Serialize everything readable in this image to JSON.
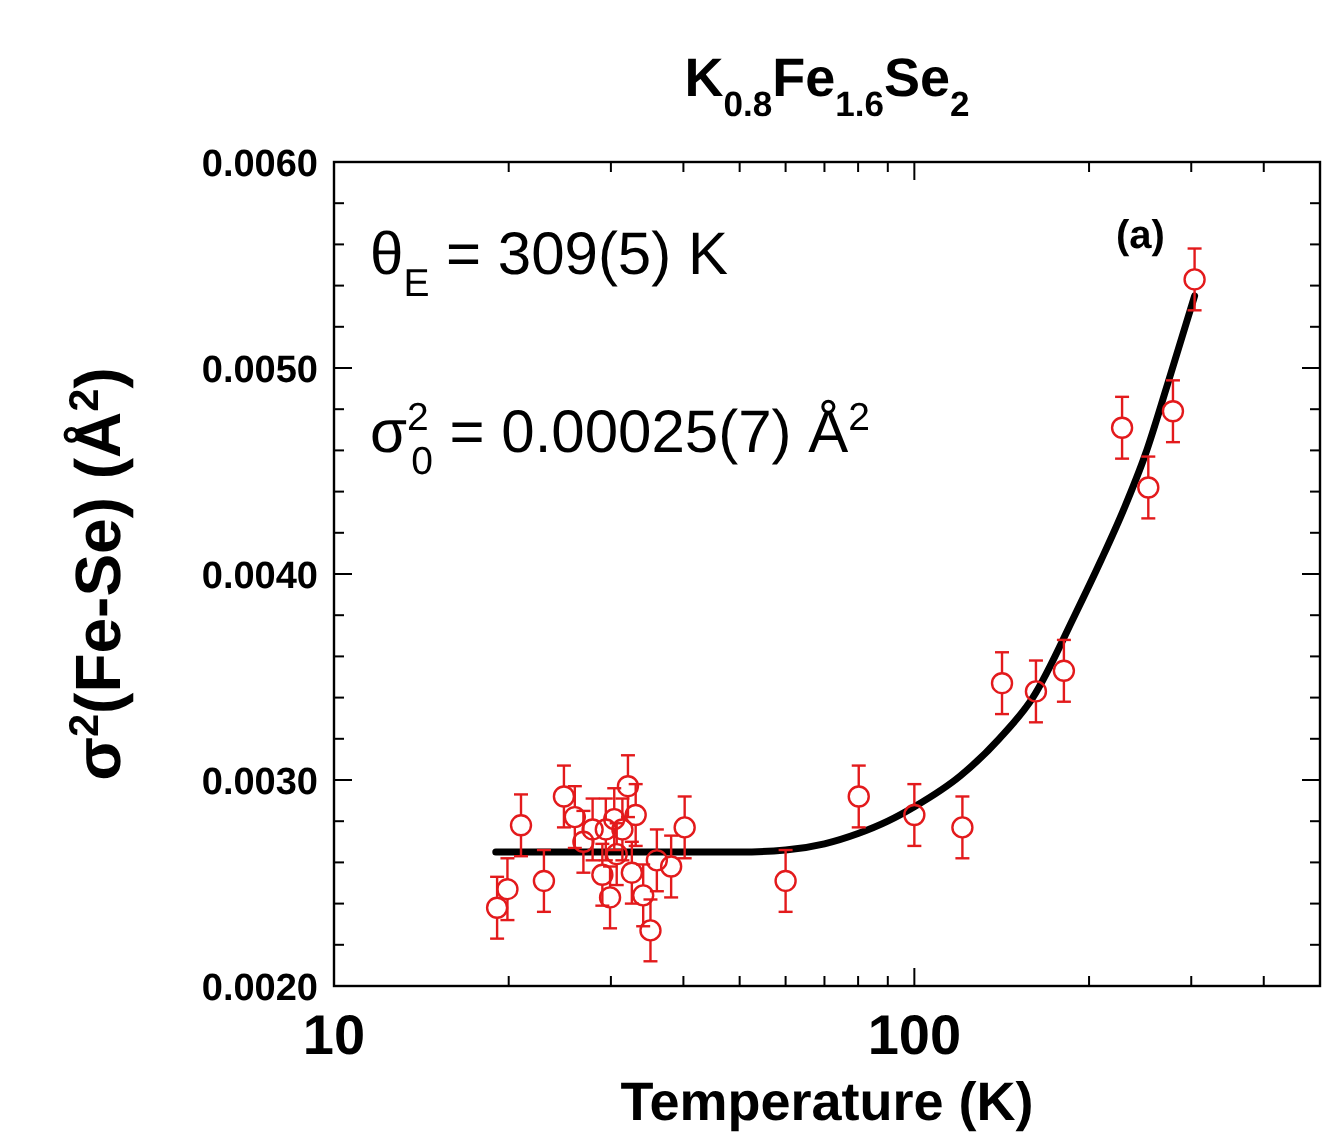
{
  "chart_data": {
    "type": "scatter",
    "title": "K$_{0.8}$Fe$_{1.6}$Se$_{2}$",
    "xlabel": "Temperature (K)",
    "ylabel": "σ$^{2}$(Fe-Se) (Å$^{2}$)",
    "annotations": [
      "θ$_{E}$ = 309(5) K",
      "σ$^{2}$$_{0}$ = 0.00025(7) Å$^{2}$",
      "(a)"
    ],
    "log": "x",
    "grid": false,
    "marker": "circle",
    "xlim": [
      10,
      500
    ],
    "xticks": [
      10,
      {
        "value": 20,
        "label": null
      },
      {
        "value": 30,
        "label": null
      },
      {
        "value": 40,
        "label": null
      },
      {
        "value": 50,
        "label": null
      },
      {
        "value": 60,
        "label": null
      },
      {
        "value": 70,
        "label": null
      },
      {
        "value": 80,
        "label": null
      },
      {
        "value": 90,
        "label": null
      },
      100,
      {
        "value": 200,
        "label": null
      },
      {
        "value": 300,
        "label": null
      },
      {
        "value": 400,
        "label": null
      }
    ],
    "ylim": [
      0.002,
      0.006
    ],
    "yticks": [
      {
        "value": 0.002,
        "label": "0.0020"
      },
      {
        "value": 0.0022,
        "label": null
      },
      {
        "value": 0.0024,
        "label": null
      },
      {
        "value": 0.0026,
        "label": null
      },
      {
        "value": 0.0028,
        "label": null
      },
      {
        "value": 0.003,
        "label": "0.0030"
      },
      {
        "value": 0.0032,
        "label": null
      },
      {
        "value": 0.0034,
        "label": null
      },
      {
        "value": 0.0036,
        "label": null
      },
      {
        "value": 0.0038,
        "label": null
      },
      {
        "value": 0.004,
        "label": "0.0040"
      },
      {
        "value": 0.0042,
        "label": null
      },
      {
        "value": 0.0044,
        "label": null
      },
      {
        "value": 0.0046,
        "label": null
      },
      {
        "value": 0.0048,
        "label": null
      },
      {
        "value": 0.005,
        "label": "0.0050"
      },
      {
        "value": 0.0052,
        "label": null
      },
      {
        "value": 0.0054,
        "label": null
      },
      {
        "value": 0.0056,
        "label": null
      },
      {
        "value": 0.0058,
        "label": null
      },
      {
        "value": 0.006,
        "label": "0.0060"
      }
    ],
    "series": [
      {
        "color": "#e31a1c",
        "x": [
          19.1,
          19.9,
          21.0,
          23.0,
          24.9,
          26.0,
          26.9,
          27.9,
          29.0,
          29.4,
          29.9,
          30.4,
          30.7,
          31.4,
          32.1,
          32.6,
          33.1,
          34.1,
          35.1,
          36.0,
          38.1,
          40.2,
          60.0,
          80.2,
          100,
          121,
          141.6,
          162,
          181,
          228,
          253,
          279,
          304
        ],
        "values": [
          0.00238,
          0.00247,
          0.00278,
          0.00251,
          0.00292,
          0.00282,
          0.0027,
          0.00276,
          0.00254,
          0.00276,
          0.00243,
          0.00281,
          0.00264,
          0.00276,
          0.00297,
          0.00255,
          0.00283,
          0.00244,
          0.00227,
          0.00261,
          0.00258,
          0.00277,
          0.00251,
          0.00292,
          0.00283,
          0.00277,
          0.00347,
          0.00343,
          0.00353,
          0.00471,
          0.00442,
          0.00479,
          0.00543
        ],
        "errors": [
          0.00015,
          0.00015,
          0.00015,
          0.00015,
          0.00015,
          0.00015,
          0.00015,
          0.00015,
          0.00015,
          0.00015,
          0.00015,
          0.00015,
          0.00015,
          0.00015,
          0.00015,
          0.00015,
          0.00015,
          0.00015,
          0.00015,
          0.00015,
          0.00015,
          0.00015,
          0.00015,
          0.00015,
          0.00015,
          0.00015,
          0.00015,
          0.00015,
          0.00015,
          0.00015,
          0.00015,
          0.00015,
          0.00015
        ]
      },
      {
        "type": "line",
        "color": "#000000",
        "marker": "none",
        "line_style": "solid",
        "x": [
          19,
          30,
          40,
          50,
          60,
          70,
          80,
          90,
          100,
          120,
          140,
          160,
          189,
          210,
          230,
          250,
          273,
          304
        ],
        "values": [
          0.00265,
          0.00265,
          0.00265,
          0.00265,
          0.00266,
          0.00269,
          0.00274,
          0.0028,
          0.00287,
          0.00302,
          0.0032,
          0.0034,
          0.0038,
          0.00407,
          0.00432,
          0.00458,
          0.00492,
          0.00535
        ]
      }
    ]
  }
}
